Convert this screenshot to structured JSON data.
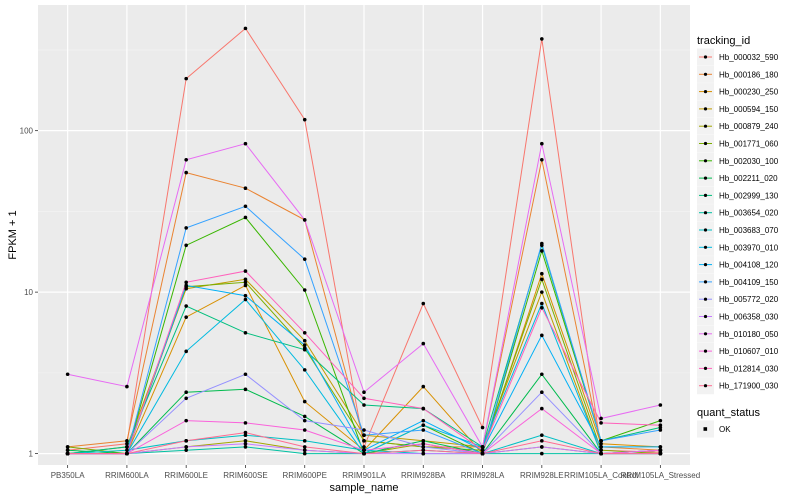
{
  "chart_data": {
    "type": "line",
    "xlabel": "sample_name",
    "ylabel": "FPKM + 1",
    "y_scale": "log10",
    "ylim": [
      0.85,
      600
    ],
    "grid": true,
    "legend_position": "right",
    "yticks": [
      {
        "value": 1,
        "label": "1"
      },
      {
        "value": 10,
        "label": "10"
      },
      {
        "value": 100,
        "label": "100"
      }
    ],
    "categories": [
      "PB350LA",
      "RRIM600LA",
      "RRIM600LE",
      "RRIM600SE",
      "RRIM600PE",
      "RRIM901LA",
      "RRIM928BA",
      "RRIM928LA",
      "RRIM928LE",
      "RRIM105LA_Control",
      "RRIM105LA_Stressed"
    ],
    "category_labels": [
      "PB350LA",
      "RRIM600LA",
      "RRIM600LE",
      "RRIM600SE",
      "RRIM600PE",
      "RRIM901LA",
      "RRIM928BA",
      "RRIM928LA",
      "RRIM928LE",
      "RRIM105LA_Control",
      "RRIM105LA_Stressed"
    ],
    "legend_title": "tracking_id",
    "series": [
      {
        "name": "Hb_000032_590",
        "color": "#F8766D",
        "values": [
          1.05,
          1.15,
          210,
          430,
          117,
          1.1,
          8.5,
          1.45,
          370,
          1.05,
          1.02
        ]
      },
      {
        "name": "Hb_000186_180",
        "color": "#EA8331",
        "values": [
          1.1,
          1.2,
          55,
          44,
          28,
          1.2,
          1.1,
          1.1,
          66,
          1.1,
          1.05
        ]
      },
      {
        "name": "Hb_000230_250",
        "color": "#D89000",
        "values": [
          1.0,
          1.0,
          7.0,
          11,
          2.1,
          1.05,
          2.6,
          1.0,
          13,
          1.15,
          1.1
        ]
      },
      {
        "name": "Hb_000594_150",
        "color": "#C09B00",
        "values": [
          1.0,
          1.1,
          10.5,
          12,
          5.0,
          1.3,
          1.2,
          1.1,
          10,
          1.0,
          1.05
        ]
      },
      {
        "name": "Hb_000879_240",
        "color": "#A3A500",
        "values": [
          1.0,
          1.0,
          1.1,
          1.2,
          1.05,
          1.0,
          1.15,
          1.0,
          1.1,
          1.0,
          1.0
        ]
      },
      {
        "name": "Hb_001771_060",
        "color": "#7CAE00",
        "values": [
          1.1,
          1.0,
          10.8,
          11.5,
          4.5,
          1.2,
          1.1,
          1.05,
          12,
          1.05,
          1.0
        ]
      },
      {
        "name": "Hb_002030_100",
        "color": "#39B600",
        "values": [
          1.0,
          1.0,
          19.5,
          29,
          10.3,
          1.0,
          1.5,
          1.0,
          18,
          1.2,
          1.6
        ]
      },
      {
        "name": "Hb_002211_020",
        "color": "#00BB4E",
        "values": [
          1.05,
          1.0,
          2.4,
          2.5,
          1.7,
          1.0,
          1.2,
          1.0,
          3.1,
          1.0,
          1.05
        ]
      },
      {
        "name": "Hb_002999_130",
        "color": "#00BF7D",
        "values": [
          1.0,
          1.1,
          8.2,
          5.6,
          4.4,
          2.0,
          1.9,
          1.1,
          19.5,
          1.2,
          1.45
        ]
      },
      {
        "name": "Hb_003654_020",
        "color": "#00C1A3",
        "values": [
          1.0,
          1.0,
          1.05,
          1.1,
          1.0,
          1.0,
          1.05,
          1.0,
          1.0,
          1.0,
          1.0
        ]
      },
      {
        "name": "Hb_003683_070",
        "color": "#00BFC4",
        "values": [
          1.0,
          1.05,
          1.2,
          1.3,
          1.2,
          1.05,
          1.0,
          1.0,
          1.3,
          1.0,
          1.05
        ]
      },
      {
        "name": "Hb_003970_010",
        "color": "#00BAE0",
        "values": [
          1.0,
          1.0,
          4.3,
          9.0,
          3.3,
          1.0,
          1.5,
          1.1,
          8.5,
          1.0,
          1.0
        ]
      },
      {
        "name": "Hb_004108_120",
        "color": "#00B0F6",
        "values": [
          1.0,
          1.0,
          11,
          9.5,
          4.7,
          1.05,
          1.6,
          1.05,
          5.4,
          1.1,
          1.1
        ]
      },
      {
        "name": "Hb_004109_150",
        "color": "#35A2FF",
        "values": [
          1.0,
          1.0,
          25,
          34,
          16,
          1.3,
          1.4,
          1.0,
          20,
          1.2,
          1.4
        ]
      },
      {
        "name": "Hb_005772_020",
        "color": "#9590FF",
        "values": [
          1.0,
          1.0,
          2.2,
          3.1,
          1.6,
          1.4,
          1.1,
          1.0,
          2.4,
          1.0,
          1.05
        ]
      },
      {
        "name": "Hb_006358_030",
        "color": "#C77CFF",
        "values": [
          1.0,
          1.0,
          1.1,
          1.15,
          1.05,
          1.0,
          1.0,
          1.0,
          1.1,
          1.0,
          1.0
        ]
      },
      {
        "name": "Hb_010180_050",
        "color": "#E76BF3",
        "values": [
          3.1,
          2.6,
          66,
          83,
          28,
          2.4,
          4.8,
          1.1,
          83,
          1.65,
          2.0
        ]
      },
      {
        "name": "Hb_010607_010",
        "color": "#FA62DB",
        "values": [
          1.0,
          1.0,
          1.6,
          1.55,
          1.4,
          1.05,
          1.15,
          1.0,
          1.9,
          1.0,
          1.05
        ]
      },
      {
        "name": "Hb_012814_030",
        "color": "#FF62BC",
        "values": [
          1.0,
          1.0,
          11.5,
          13.5,
          5.6,
          2.2,
          1.9,
          1.05,
          8.0,
          1.55,
          1.5
        ]
      },
      {
        "name": "Hb_171900_030",
        "color": "#FF6C91",
        "values": [
          1.0,
          1.0,
          1.2,
          1.35,
          1.1,
          1.0,
          1.05,
          1.0,
          1.2,
          1.0,
          1.0
        ]
      }
    ],
    "legend2_title": "quant_status",
    "legend2_items": [
      "OK"
    ]
  }
}
